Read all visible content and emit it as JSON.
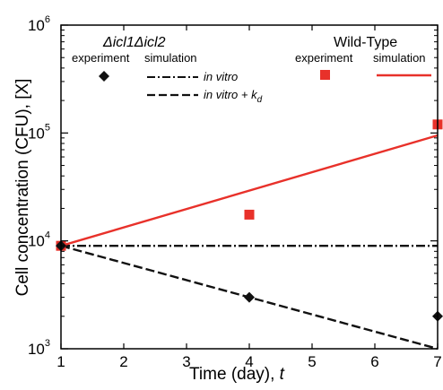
{
  "chart_data": {
    "type": "scatter",
    "xlabel": "Time (day), ",
    "xlabel_var": "t",
    "ylabel": "Cell concentration (CFU), [X]",
    "x_range": [
      1,
      7
    ],
    "y_range": [
      1000,
      1000000
    ],
    "y_scale": "log",
    "x_ticks": [
      "1",
      "2",
      "3",
      "4",
      "5",
      "6",
      "7"
    ],
    "y_tick_values": [
      1000,
      10000,
      100000,
      1000000
    ],
    "y_tick_bases": [
      "10",
      "10",
      "10",
      "10"
    ],
    "y_tick_exps": [
      "3",
      "4",
      "5",
      "6"
    ],
    "grid": false,
    "legend_groups": {
      "mutant": {
        "title": "Δicl1Δicl2",
        "experiment_label": "experiment",
        "simulation_label": "simulation",
        "vitro_label": "in vitro",
        "vitro_kd_label": "in vitro + k",
        "kd_subscript": "d"
      },
      "wild": {
        "title": "Wild-Type",
        "experiment_label": "experiment",
        "simulation_label": "simulation"
      }
    },
    "series": [
      {
        "key": "wt_exp",
        "kind": "markers",
        "marker": "square",
        "color": "#e8312a",
        "points": [
          {
            "x": 1,
            "y": 9000
          },
          {
            "x": 4,
            "y": 17500
          },
          {
            "x": 7,
            "y": 120000
          }
        ]
      },
      {
        "key": "wt_sim",
        "kind": "line",
        "style": "solid",
        "color": "#e8312a",
        "points": [
          {
            "x": 1,
            "y": 9000
          },
          {
            "x": 7,
            "y": 95000
          }
        ]
      },
      {
        "key": "mut_exp",
        "kind": "markers",
        "marker": "diamond",
        "color": "#111111",
        "points": [
          {
            "x": 1,
            "y": 9000
          },
          {
            "x": 4,
            "y": 3000
          },
          {
            "x": 7,
            "y": 2000
          }
        ]
      },
      {
        "key": "mut_vitro",
        "kind": "line",
        "style": "dashdot",
        "color": "#111111",
        "points": [
          {
            "x": 1,
            "y": 9000
          },
          {
            "x": 7,
            "y": 9000
          }
        ]
      },
      {
        "key": "mut_vitro_kd",
        "kind": "line",
        "style": "dashed",
        "color": "#111111",
        "points": [
          {
            "x": 1,
            "y": 9000
          },
          {
            "x": 7,
            "y": 1000
          }
        ]
      }
    ]
  }
}
